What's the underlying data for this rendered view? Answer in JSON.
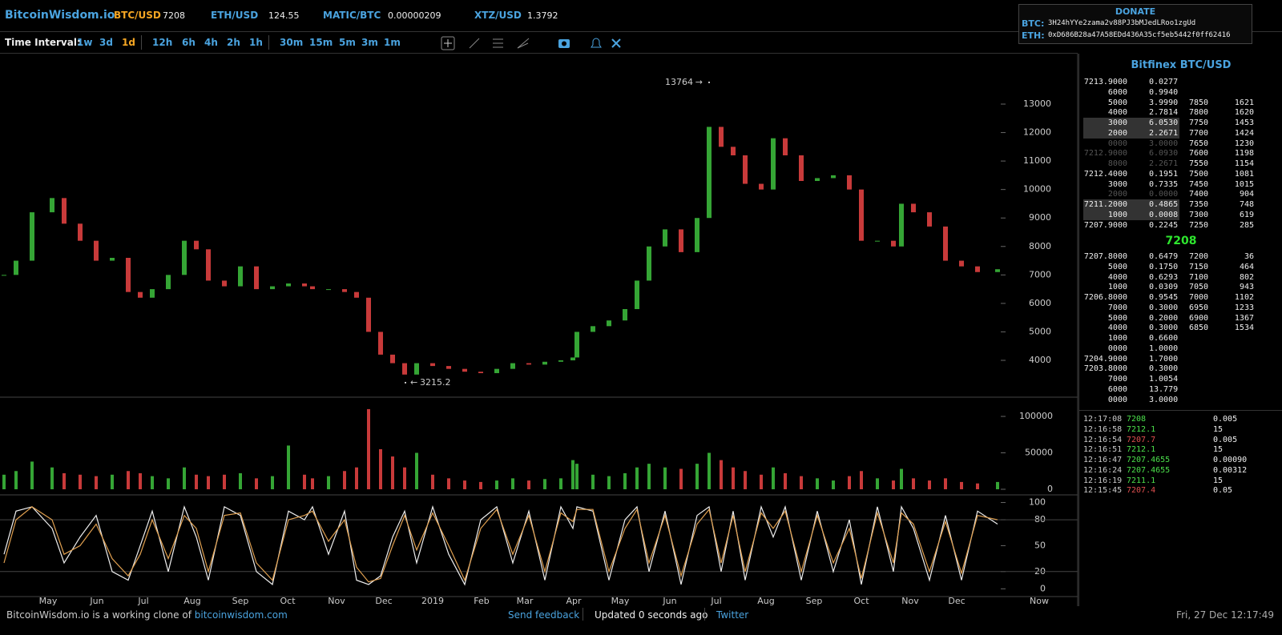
{
  "header": {
    "brand": "BitcoinWisdom.io",
    "tickers": [
      {
        "name": "BTC/USD",
        "value": "7208",
        "color": "#f5a623"
      },
      {
        "name": "ETH/USD",
        "value": "124.55",
        "color": "#4aa3df"
      },
      {
        "name": "MATIC/BTC",
        "value": "0.00000209",
        "color": "#4aa3df"
      },
      {
        "name": "XTZ/USD",
        "value": "1.3792",
        "color": "#4aa3df"
      }
    ],
    "donate": {
      "title": "DONATE",
      "rows": [
        {
          "coin": "BTC:",
          "address": "3H24hYYe2zama2v88PJ3bMJedLRoo1zgUd"
        },
        {
          "coin": "ETH:",
          "address": "0xD686B28a47A58EDd436A35cf5eb5442f0ff62416"
        }
      ]
    }
  },
  "toolbar": {
    "label": "Time Interval:",
    "interval_groups": [
      [
        "1w",
        "3d",
        "1d"
      ],
      [
        "12h",
        "6h",
        "4h",
        "2h",
        "1h"
      ],
      [
        "30m",
        "15m",
        "5m",
        "3m",
        "1m"
      ]
    ],
    "active": "1d"
  },
  "chart_data": [
    {
      "type": "candlestick",
      "x": [
        2.5,
        10,
        20,
        32.5,
        40,
        50,
        60,
        70,
        80,
        87.5,
        95,
        105,
        115,
        122.5,
        130,
        140,
        150,
        160,
        170,
        180,
        190,
        195,
        205,
        215,
        222.5,
        230,
        237.5,
        245,
        252.5,
        260,
        270,
        280,
        290,
        300,
        310,
        320,
        330,
        340,
        350,
        357.5,
        360,
        370,
        380,
        390,
        397.5,
        405,
        415,
        425,
        435,
        442.5,
        450,
        457.5,
        465,
        475,
        482.5,
        490,
        500,
        510,
        520,
        530,
        537.5,
        547.5,
        557.5,
        562.5,
        570,
        580,
        590,
        600,
        610,
        622.5
      ],
      "values": [
        7000,
        7500,
        9200,
        9700,
        8800,
        8200,
        7500,
        7600,
        6400,
        6200,
        6500,
        7000,
        8200,
        7900,
        6800,
        6600,
        7300,
        6500,
        6600,
        6700,
        6600,
        6500,
        6500,
        6400,
        6200,
        5000,
        4200,
        3900,
        3500,
        3900,
        3800,
        3700,
        3600,
        3550,
        3700,
        3900,
        3850,
        3950,
        4000,
        4100,
        5000,
        5200,
        5400,
        5800,
        6800,
        8000,
        8600,
        7800,
        9000,
        12200,
        11500,
        11200,
        10200,
        10000,
        11800,
        11200,
        10300,
        10400,
        10500,
        10000,
        8200,
        8200,
        8000,
        9500,
        9200,
        8700,
        7500,
        7300,
        7100,
        7200
      ],
      "xlim": [
        0,
        672.5
      ],
      "ylim": [
        2734,
        14772
      ],
      "yticks": [
        4000,
        5000,
        6000,
        7000,
        8000,
        9000,
        10000,
        11000,
        12000,
        13000
      ],
      "annotations": [
        {
          "value": 13764,
          "x": 442.5
        },
        {
          "value": 3215.2,
          "x": 253
        }
      ],
      "up_color": "#35a535",
      "down_color": "#c83a3a"
    },
    {
      "type": "bar",
      "values": [
        20000,
        25000,
        38000,
        30000,
        22000,
        20000,
        18000,
        20000,
        25000,
        22000,
        18000,
        15000,
        30000,
        20000,
        18000,
        20000,
        22000,
        15000,
        18000,
        60000,
        20000,
        15000,
        18000,
        25000,
        30000,
        110000,
        55000,
        45000,
        30000,
        50000,
        20000,
        15000,
        12000,
        10000,
        12000,
        15000,
        12000,
        14000,
        15000,
        40000,
        35000,
        20000,
        18000,
        22000,
        30000,
        35000,
        30000,
        28000,
        35000,
        50000,
        40000,
        30000,
        25000,
        20000,
        30000,
        22000,
        18000,
        15000,
        12000,
        18000,
        25000,
        15000,
        12000,
        28000,
        15000,
        12000,
        15000,
        10000,
        8000,
        10000
      ],
      "ylim": [
        0,
        122000
      ],
      "yticks": [
        0,
        50000,
        100000
      ]
    },
    {
      "type": "line",
      "series": [
        {
          "color": "#eeeeee",
          "values": [
            40,
            90,
            95,
            70,
            30,
            60,
            85,
            20,
            10,
            50,
            90,
            20,
            95,
            60,
            10,
            95,
            85,
            20,
            5,
            90,
            80,
            95,
            40,
            90,
            10,
            5,
            15,
            60,
            90,
            30,
            95,
            40,
            5,
            80,
            95,
            30,
            90,
            10,
            95,
            70,
            95,
            90,
            10,
            80,
            95,
            20,
            90,
            5,
            85,
            95,
            20,
            90,
            10,
            95,
            60,
            95,
            10,
            90,
            20,
            80,
            5,
            95,
            20,
            95,
            70,
            10,
            85,
            10,
            90,
            75
          ]
        },
        {
          "color": "#e0a050",
          "values": [
            30,
            80,
            95,
            80,
            40,
            50,
            75,
            35,
            15,
            40,
            80,
            35,
            85,
            70,
            20,
            85,
            88,
            30,
            10,
            80,
            85,
            90,
            55,
            80,
            25,
            8,
            12,
            50,
            85,
            45,
            88,
            50,
            10,
            70,
            92,
            40,
            85,
            20,
            88,
            78,
            92,
            92,
            20,
            70,
            92,
            30,
            85,
            15,
            75,
            92,
            30,
            85,
            20,
            88,
            70,
            90,
            20,
            85,
            30,
            70,
            12,
            88,
            30,
            88,
            75,
            20,
            78,
            18,
            85,
            80
          ]
        }
      ],
      "ylim": [
        -9,
        107
      ],
      "yticks": [
        0,
        20,
        50,
        80,
        100
      ],
      "grid_lines": [
        20,
        80
      ],
      "xticks": [
        {
          "value": 30,
          "label": "May"
        },
        {
          "value": 60.5,
          "label": "Jun"
        },
        {
          "value": 89.5,
          "label": "Jul"
        },
        {
          "value": 120,
          "label": "Aug"
        },
        {
          "value": 150,
          "label": "Sep"
        },
        {
          "value": 179.5,
          "label": "Oct"
        },
        {
          "value": 210,
          "label": "Nov"
        },
        {
          "value": 239.5,
          "label": "Dec"
        },
        {
          "value": 270,
          "label": "2019"
        },
        {
          "value": 300.5,
          "label": "Feb"
        },
        {
          "value": 327.5,
          "label": "Mar"
        },
        {
          "value": 358,
          "label": "Apr"
        },
        {
          "value": 387,
          "label": "May"
        },
        {
          "value": 418,
          "label": "Jun"
        },
        {
          "value": 447,
          "label": "Jul"
        },
        {
          "value": 478,
          "label": "Aug"
        },
        {
          "value": 508,
          "label": "Sep"
        },
        {
          "value": 537.5,
          "label": "Oct"
        },
        {
          "value": 568,
          "label": "Nov"
        },
        {
          "value": 597,
          "label": "Dec"
        },
        {
          "value": 648.5,
          "label": "Now"
        }
      ]
    }
  ],
  "orderbook": {
    "title": "Bitfinex BTC/USD",
    "asks": [
      [
        "7213.9000",
        "0.0277"
      ],
      [
        "6000",
        "0.9940"
      ],
      [
        "5000",
        "3.9990"
      ],
      [
        "4000",
        "2.7814"
      ],
      [
        "3000",
        "6.0530"
      ],
      [
        "2000",
        "2.2671"
      ],
      [
        "0000",
        "3.0000"
      ],
      [
        "7212.9000",
        "6.0930"
      ],
      [
        "8000",
        "2.2671"
      ],
      [
        "7212.4000",
        "0.1951"
      ],
      [
        "3000",
        "0.7335"
      ],
      [
        "2000",
        "0.0000"
      ],
      [
        "7211.2000",
        "0.4865"
      ],
      [
        "1000",
        "0.0008"
      ],
      [
        "7207.9000",
        "0.2245"
      ]
    ],
    "ask_levels": [
      [
        "7850",
        "1621"
      ],
      [
        "7800",
        "1620"
      ],
      [
        "7750",
        "1453"
      ],
      [
        "7700",
        "1424"
      ],
      [
        "7650",
        "1230"
      ],
      [
        "7600",
        "1198"
      ],
      [
        "7550",
        "1154"
      ],
      [
        "7500",
        "1081"
      ],
      [
        "7450",
        "1015"
      ],
      [
        "7400",
        "904"
      ],
      [
        "7350",
        "748"
      ],
      [
        "7300",
        "619"
      ],
      [
        "7250",
        "285"
      ]
    ],
    "highlight_rows": [
      4,
      5,
      12,
      13
    ],
    "dim_rows": [
      6,
      7,
      8,
      11
    ],
    "last": "7208",
    "bids": [
      [
        "7207.8000",
        "0.6479"
      ],
      [
        "5000",
        "0.1750"
      ],
      [
        "4000",
        "0.6293"
      ],
      [
        "1000",
        "0.0309"
      ],
      [
        "7206.8000",
        "0.9545"
      ],
      [
        "7000",
        "0.3000"
      ],
      [
        "5000",
        "0.2000"
      ],
      [
        "4000",
        "0.3000"
      ],
      [
        "1000",
        "0.6600"
      ],
      [
        "0000",
        "1.0000"
      ],
      [
        "7204.9000",
        "1.7000"
      ],
      [
        "7203.8000",
        "0.3000"
      ],
      [
        "7000",
        "1.0054"
      ],
      [
        "6000",
        "13.779"
      ],
      [
        "0000",
        "3.0000"
      ]
    ],
    "bid_levels": [
      [
        "7200",
        "36"
      ],
      [
        "7150",
        "464"
      ],
      [
        "7100",
        "802"
      ],
      [
        "7050",
        "943"
      ],
      [
        "7000",
        "1102"
      ],
      [
        "6950",
        "1233"
      ],
      [
        "6900",
        "1367"
      ],
      [
        "6850",
        "1534"
      ]
    ],
    "trades": [
      {
        "time": "12:17:08",
        "price": "7208",
        "amount": "0.005",
        "color": "#4be04b"
      },
      {
        "time": "12:16:58",
        "price": "7212.1",
        "amount": "15",
        "color": "#4be04b"
      },
      {
        "time": "12:16:54",
        "price": "7207.7",
        "amount": "0.005",
        "color": "#e05050"
      },
      {
        "time": "12:16:51",
        "price": "7212.1",
        "amount": "15",
        "color": "#4be04b"
      },
      {
        "time": "12:16:47",
        "price": "7207.4655",
        "amount": "0.00090",
        "color": "#4be04b"
      },
      {
        "time": "12:16:24",
        "price": "7207.4655",
        "amount": "0.00312",
        "color": "#4be04b"
      },
      {
        "time": "12:16:19",
        "price": "7211.1",
        "amount": "15",
        "color": "#4be04b"
      },
      {
        "time": "12:15:45",
        "price": "7207.4",
        "amount": "0.05",
        "color": "#e05050"
      }
    ]
  },
  "footer": {
    "clone_text": "BitcoinWisdom.io is a working clone of",
    "clone_link": "bitcoinwisdom.com",
    "feedback": "Send feedback",
    "updated": "Updated 0 seconds ago",
    "twitter": "Twitter",
    "datetime": "Fri, 27 Dec 12:17:49"
  }
}
